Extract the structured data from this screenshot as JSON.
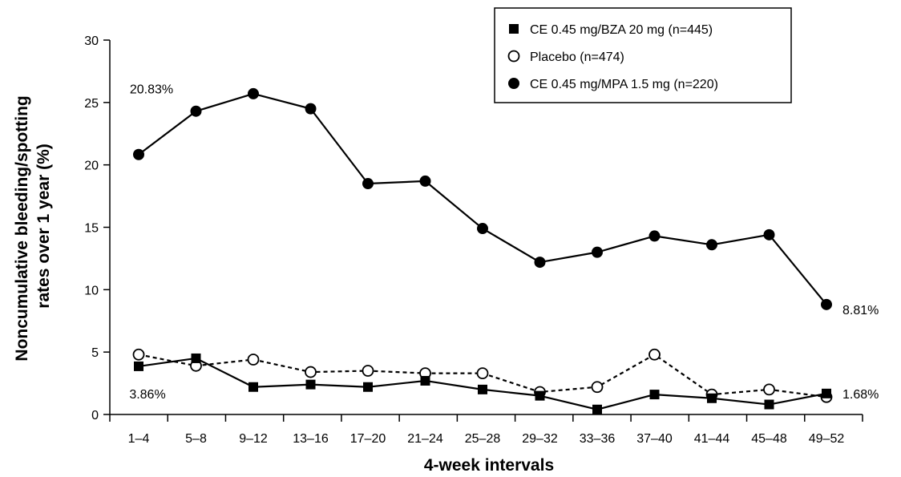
{
  "chart_data": {
    "type": "line",
    "title": "",
    "xlabel": "4-week intervals",
    "ylabel": "Noncumulative bleeding/spotting rates over 1 year (%)",
    "ylabel_lines": [
      "Noncumulative bleeding/spotting",
      "rates over 1 year (%)"
    ],
    "ylim": [
      0,
      30
    ],
    "yticks": [
      0,
      5,
      10,
      15,
      20,
      25,
      30
    ],
    "grid": false,
    "legend_position": "top-right",
    "categories": [
      "1–4",
      "5–8",
      "9–12",
      "13–16",
      "17–20",
      "21–24",
      "25–28",
      "29–32",
      "33–36",
      "37–40",
      "41–44",
      "45–48",
      "49–52"
    ],
    "series": [
      {
        "name": "CE 0.45 mg/BZA 20 mg (n=445)",
        "marker": "filled-square",
        "line_style": "solid",
        "color": "#000000",
        "values": [
          3.86,
          4.5,
          2.2,
          2.4,
          2.2,
          2.7,
          2.0,
          1.5,
          0.4,
          1.6,
          1.3,
          0.8,
          1.68
        ]
      },
      {
        "name": "Placebo (n=474)",
        "marker": "open-circle",
        "line_style": "dashed",
        "color": "#000000",
        "values": [
          4.8,
          3.9,
          4.4,
          3.4,
          3.5,
          3.3,
          3.3,
          1.8,
          2.2,
          4.8,
          1.6,
          2.0,
          1.4
        ]
      },
      {
        "name": "CE 0.45 mg/MPA 1.5 mg (n=220)",
        "marker": "filled-circle",
        "line_style": "solid",
        "color": "#000000",
        "values": [
          20.83,
          24.3,
          25.7,
          24.5,
          18.5,
          18.7,
          14.9,
          12.2,
          13.0,
          14.3,
          13.6,
          14.4,
          8.81
        ]
      }
    ],
    "annotations": [
      {
        "text": "20.83%",
        "series": 2,
        "index": 0,
        "placement": "above"
      },
      {
        "text": "3.86%",
        "series": 0,
        "index": 0,
        "placement": "below"
      },
      {
        "text": "8.81%",
        "series": 2,
        "index": 12,
        "placement": "right"
      },
      {
        "text": "1.68%",
        "series": 0,
        "index": 12,
        "placement": "right"
      }
    ]
  }
}
